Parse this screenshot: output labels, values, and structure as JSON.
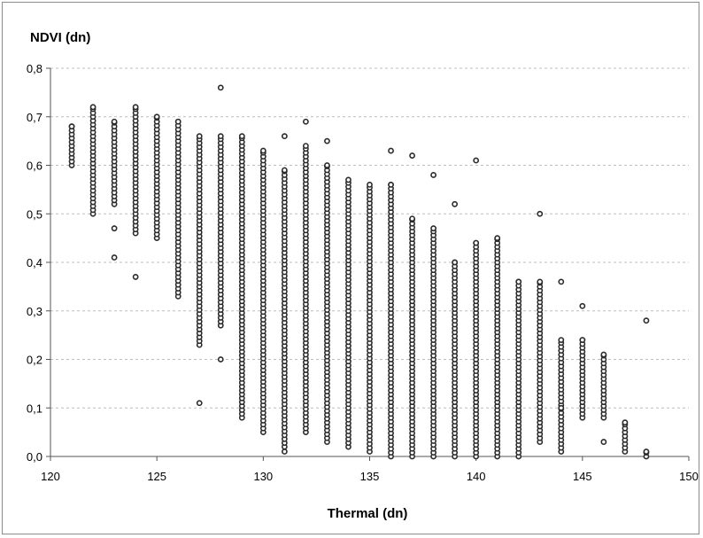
{
  "chart_data": {
    "type": "scatter",
    "ylabel": "NDVI (dn)",
    "xlabel": "Thermal (dn)",
    "xlim": [
      120,
      150
    ],
    "ylim": [
      0,
      0.8
    ],
    "x_ticks": [
      "120",
      "125",
      "130",
      "135",
      "140",
      "145",
      "150"
    ],
    "y_ticks": [
      "0,0",
      "0,1",
      "0,2",
      "0,3",
      "0,4",
      "0,5",
      "0,6",
      "0,7",
      "0,8"
    ],
    "grid": "horizontal dashed",
    "legend": "none",
    "marker_color": "#2b2b2b",
    "columns": [
      {
        "x": 121,
        "ymin": 0.6,
        "ymax": 0.68,
        "outliers": []
      },
      {
        "x": 122,
        "ymin": 0.5,
        "ymax": 0.72,
        "outliers": []
      },
      {
        "x": 123,
        "ymin": 0.52,
        "ymax": 0.69,
        "outliers": [
          0.47,
          0.41
        ]
      },
      {
        "x": 124,
        "ymin": 0.46,
        "ymax": 0.72,
        "outliers": [
          0.37
        ]
      },
      {
        "x": 125,
        "ymin": 0.45,
        "ymax": 0.7,
        "outliers": []
      },
      {
        "x": 126,
        "ymin": 0.33,
        "ymax": 0.69,
        "outliers": []
      },
      {
        "x": 127,
        "ymin": 0.23,
        "ymax": 0.66,
        "outliers": [
          0.11
        ]
      },
      {
        "x": 128,
        "ymin": 0.27,
        "ymax": 0.66,
        "outliers": [
          0.76,
          0.2
        ]
      },
      {
        "x": 129,
        "ymin": 0.08,
        "ymax": 0.66,
        "outliers": []
      },
      {
        "x": 130,
        "ymin": 0.05,
        "ymax": 0.63,
        "outliers": []
      },
      {
        "x": 131,
        "ymin": 0.02,
        "ymax": 0.59,
        "outliers": [
          0.66,
          0.01
        ]
      },
      {
        "x": 132,
        "ymin": 0.05,
        "ymax": 0.64,
        "outliers": [
          0.69
        ]
      },
      {
        "x": 133,
        "ymin": 0.03,
        "ymax": 0.6,
        "outliers": [
          0.65
        ]
      },
      {
        "x": 134,
        "ymin": 0.02,
        "ymax": 0.57,
        "outliers": []
      },
      {
        "x": 135,
        "ymin": 0.01,
        "ymax": 0.56,
        "outliers": []
      },
      {
        "x": 136,
        "ymin": 0.0,
        "ymax": 0.56,
        "outliers": [
          0.63
        ]
      },
      {
        "x": 137,
        "ymin": 0.0,
        "ymax": 0.49,
        "outliers": [
          0.62
        ]
      },
      {
        "x": 138,
        "ymin": 0.0,
        "ymax": 0.47,
        "outliers": [
          0.58
        ]
      },
      {
        "x": 139,
        "ymin": 0.0,
        "ymax": 0.4,
        "outliers": [
          0.52
        ]
      },
      {
        "x": 140,
        "ymin": 0.0,
        "ymax": 0.44,
        "outliers": [
          0.61
        ]
      },
      {
        "x": 141,
        "ymin": 0.0,
        "ymax": 0.45,
        "outliers": []
      },
      {
        "x": 142,
        "ymin": 0.0,
        "ymax": 0.36,
        "outliers": []
      },
      {
        "x": 143,
        "ymin": 0.03,
        "ymax": 0.36,
        "outliers": [
          0.5
        ]
      },
      {
        "x": 144,
        "ymin": 0.01,
        "ymax": 0.24,
        "outliers": [
          0.36,
          0.1
        ]
      },
      {
        "x": 145,
        "ymin": 0.08,
        "ymax": 0.24,
        "outliers": [
          0.31
        ]
      },
      {
        "x": 146,
        "ymin": 0.08,
        "ymax": 0.21,
        "outliers": [
          0.03
        ]
      },
      {
        "x": 147,
        "ymin": 0.01,
        "ymax": 0.07,
        "outliers": []
      },
      {
        "x": 148,
        "ymin": 0.0,
        "ymax": 0.01,
        "outliers": [
          0.28
        ]
      }
    ]
  }
}
